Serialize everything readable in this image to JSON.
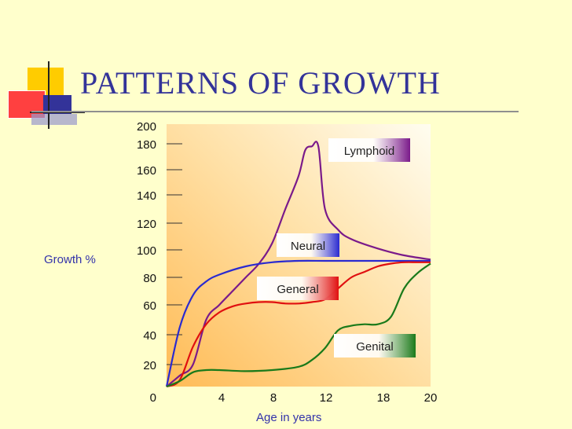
{
  "slide": {
    "title": "PATTERNS OF GROWTH"
  },
  "chart_data": {
    "type": "line",
    "title": "PATTERNS OF GROWTH",
    "xlabel": "Age in years",
    "ylabel": "Growth %",
    "x_ticks": [
      0,
      4,
      8,
      12,
      18,
      20
    ],
    "y_ticks": [
      0,
      20,
      40,
      60,
      80,
      100,
      120,
      140,
      160,
      180,
      200
    ],
    "ylim": [
      0,
      200
    ],
    "grid": false,
    "colors": {
      "Lymphoid": "#7a1a8a",
      "Neural": "#2a2ad0",
      "General": "#e01010",
      "Genital": "#1a7a1a"
    },
    "series": [
      {
        "name": "Lymphoid",
        "points": [
          [
            0,
            0
          ],
          [
            1,
            10
          ],
          [
            2,
            20
          ],
          [
            3,
            50
          ],
          [
            4,
            60
          ],
          [
            5,
            70
          ],
          [
            6,
            80
          ],
          [
            7,
            90
          ],
          [
            8,
            105
          ],
          [
            9,
            130
          ],
          [
            10,
            155
          ],
          [
            10.5,
            175
          ],
          [
            11,
            178
          ],
          [
            11.5,
            178
          ],
          [
            12,
            130
          ],
          [
            13,
            115
          ],
          [
            14,
            108
          ],
          [
            16,
            101
          ],
          [
            18,
            96
          ],
          [
            20,
            93
          ]
        ]
      },
      {
        "name": "Neural",
        "points": [
          [
            0,
            0
          ],
          [
            1,
            45
          ],
          [
            2,
            67
          ],
          [
            3,
            77
          ],
          [
            4,
            82
          ],
          [
            6,
            88
          ],
          [
            8,
            91
          ],
          [
            10,
            92
          ],
          [
            12,
            92
          ],
          [
            14,
            92
          ],
          [
            16,
            92
          ],
          [
            18,
            92
          ],
          [
            20,
            92
          ]
        ]
      },
      {
        "name": "General",
        "points": [
          [
            0,
            0
          ],
          [
            1,
            6
          ],
          [
            2,
            32
          ],
          [
            3,
            47
          ],
          [
            4,
            55
          ],
          [
            5,
            59
          ],
          [
            6,
            61
          ],
          [
            7,
            62
          ],
          [
            8,
            62
          ],
          [
            9,
            61
          ],
          [
            10,
            61
          ],
          [
            11,
            62
          ],
          [
            12,
            64
          ],
          [
            13,
            72
          ],
          [
            14,
            80
          ],
          [
            15,
            84
          ],
          [
            16,
            88
          ],
          [
            17,
            90
          ],
          [
            18,
            91
          ],
          [
            19,
            91
          ],
          [
            20,
            91
          ]
        ]
      },
      {
        "name": "Genital",
        "points": [
          [
            0,
            0
          ],
          [
            1,
            5
          ],
          [
            2,
            13
          ],
          [
            3,
            15
          ],
          [
            4,
            15
          ],
          [
            6,
            14
          ],
          [
            8,
            15
          ],
          [
            10,
            18
          ],
          [
            11,
            23
          ],
          [
            12,
            31
          ],
          [
            13,
            43
          ],
          [
            14,
            46
          ],
          [
            15,
            47
          ],
          [
            16,
            47
          ],
          [
            17,
            52
          ],
          [
            18,
            72
          ],
          [
            19,
            83
          ],
          [
            20,
            90
          ]
        ]
      }
    ]
  }
}
